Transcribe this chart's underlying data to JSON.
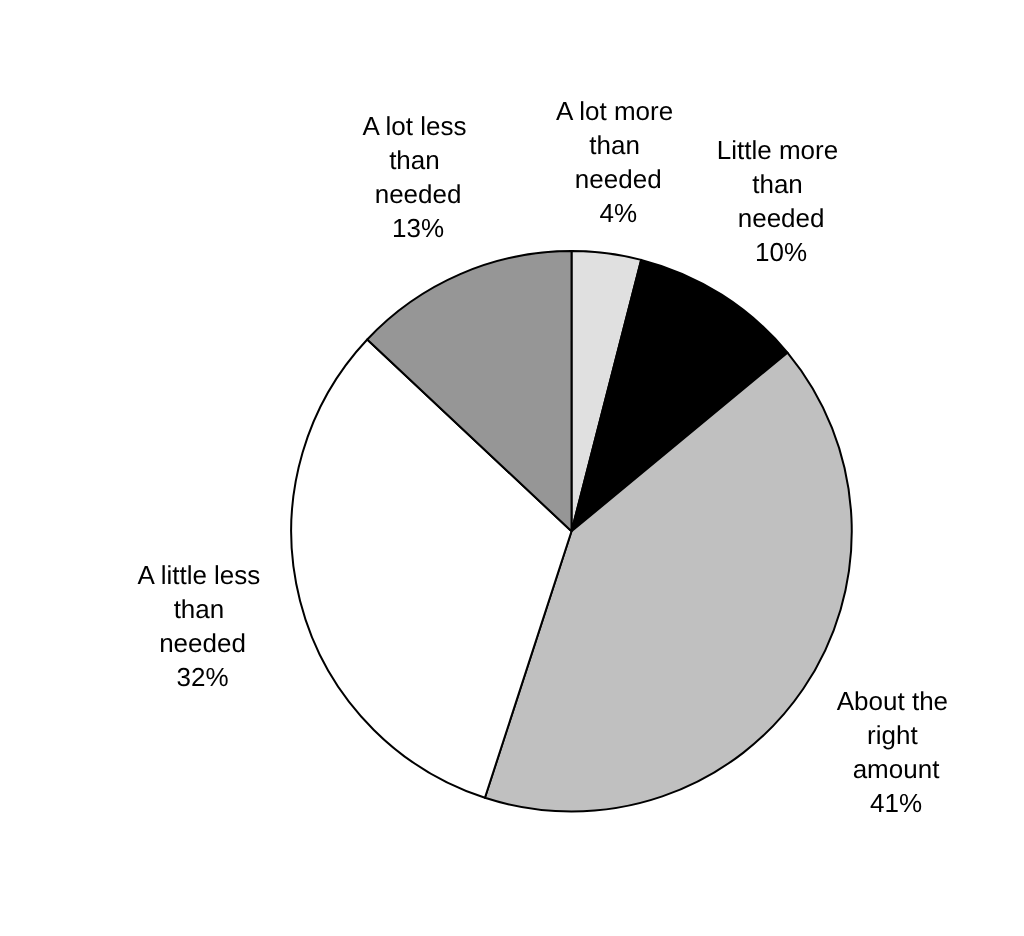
{
  "chart_data": {
    "type": "pie",
    "categories": [
      "A lot more than needed",
      "Little more than needed",
      "About the right amount",
      "A little less than needed",
      "A lot less than needed"
    ],
    "values": [
      4,
      10,
      41,
      32,
      13
    ],
    "value_labels": [
      "4%",
      "10%",
      "41%",
      "32%",
      "13%"
    ],
    "colors": [
      "#e0e0e0",
      "#000000",
      "#c0c0c0",
      "#ffffff",
      "#969696"
    ]
  }
}
